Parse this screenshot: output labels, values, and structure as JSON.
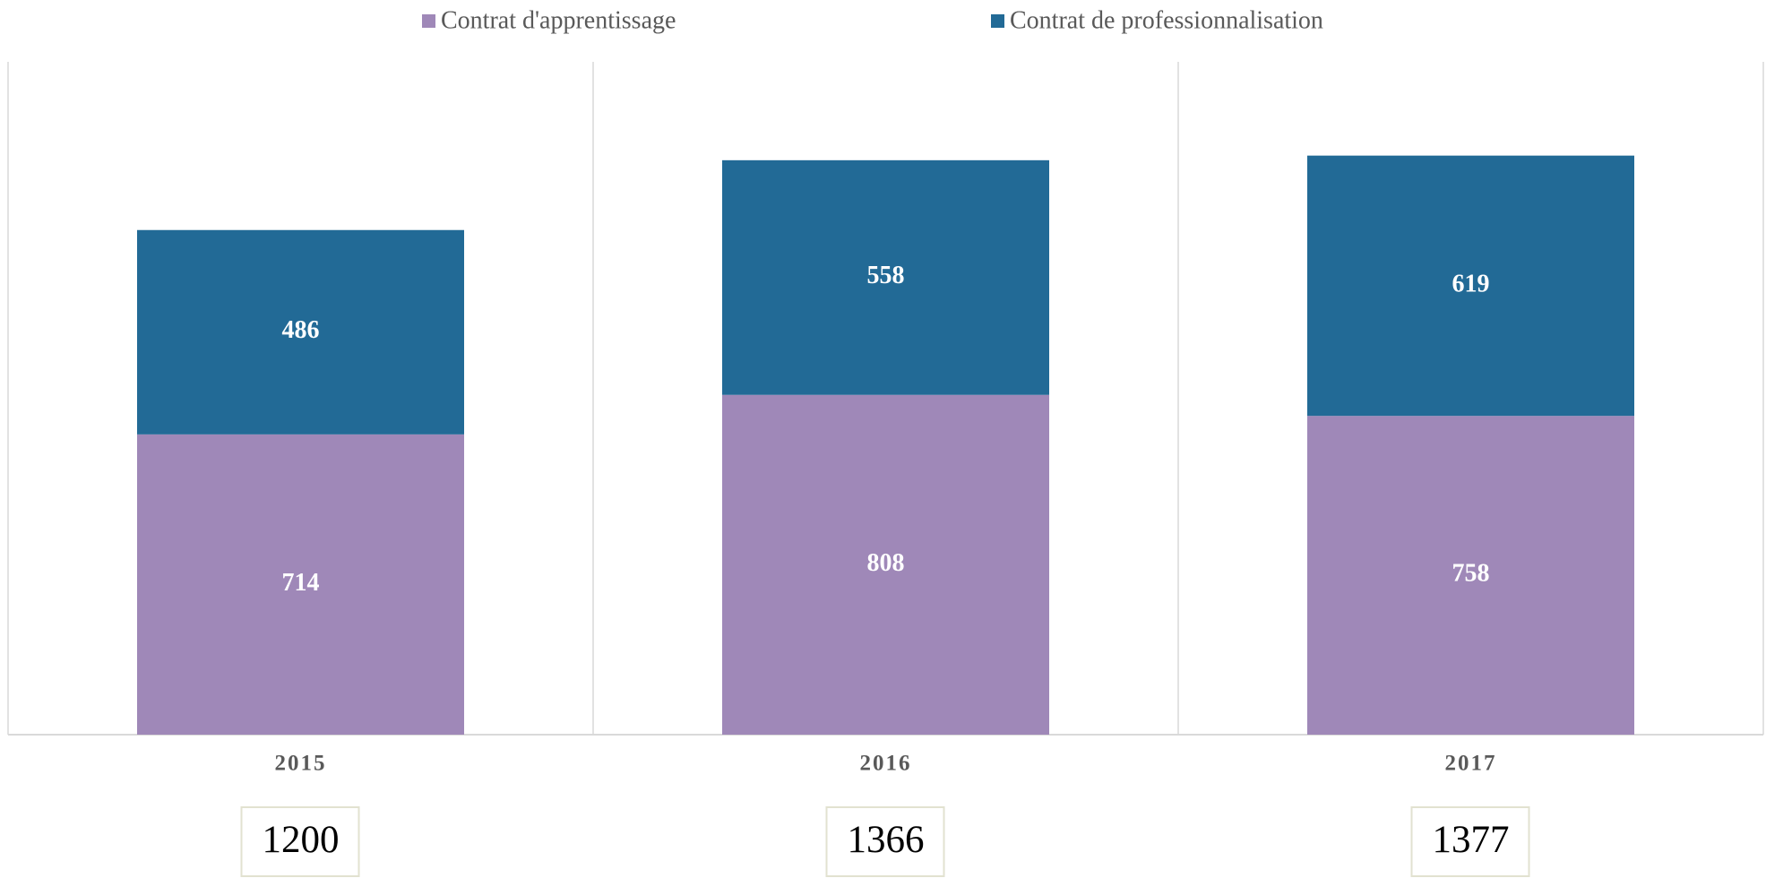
{
  "chart_data": {
    "type": "stacked_bar",
    "categories": [
      "2015",
      "2016",
      "2017"
    ],
    "series": [
      {
        "name": "Contrat d'apprentissage",
        "color": "#9f88b8",
        "values": [
          714,
          808,
          758
        ]
      },
      {
        "name": "Contrat de professionnalisation",
        "color": "#226a96",
        "values": [
          486,
          558,
          619
        ]
      }
    ],
    "totals": [
      1200,
      1366,
      1377
    ],
    "ylim": [
      0,
      1600
    ],
    "legend": "top"
  }
}
